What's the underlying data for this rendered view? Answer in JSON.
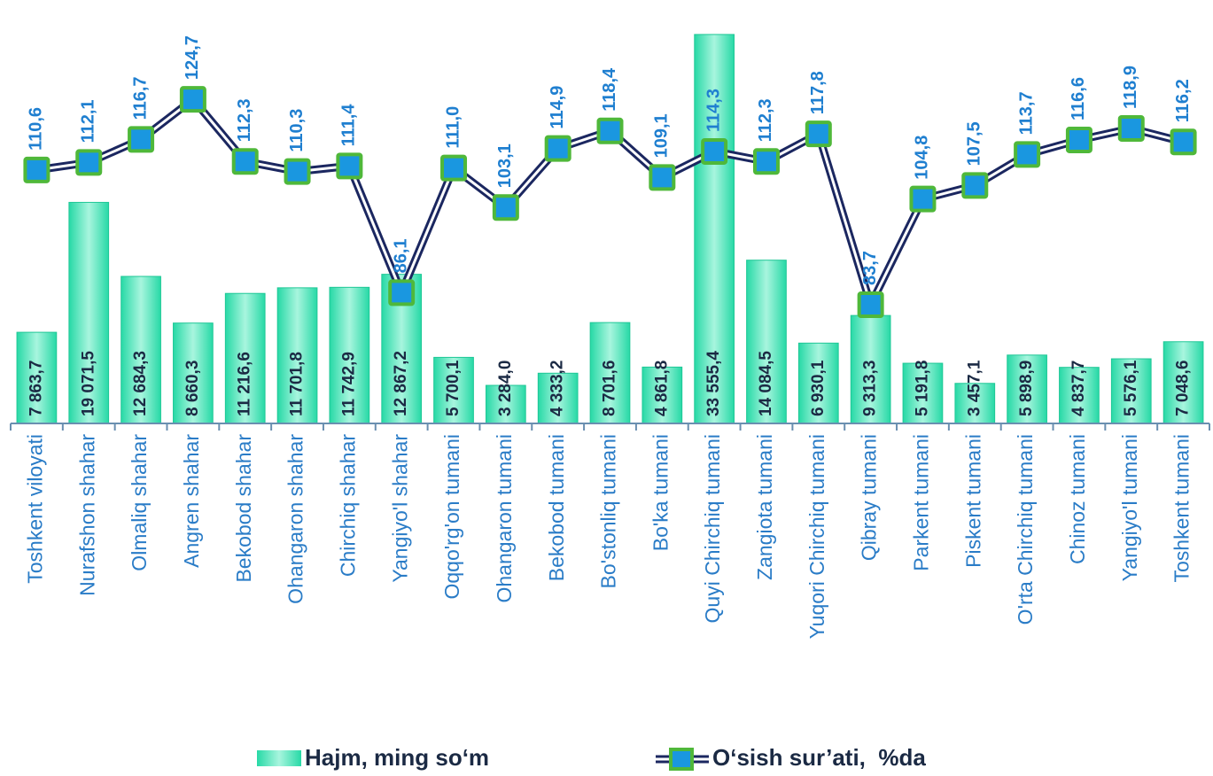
{
  "chart_data": {
    "type": "bar-line",
    "categories": [
      "Toshkent viloyati",
      "Nurafshon shahar",
      "Olmaliq shahar",
      "Angren shahar",
      "Bekobod shahar",
      "Ohangaron shahar",
      "Chirchiq shahar",
      "Yangiyo'l shahar",
      "Oqqo'rg'on tumani",
      "Ohangaron tumani",
      "Bekobod tumani",
      "Bo'stonliq tumani",
      "Bo'ka tumani",
      "Quyi Chirchiq tumani",
      "Zangiota tumani",
      "Yuqori Chirchiq tumani",
      "Qibray tumani",
      "Parkent tumani",
      "Piskent tumani",
      "O'rta Chirchiq tumani",
      "Chinoz tumani",
      "Yangiyo'l tumani",
      "Toshkent tumani"
    ],
    "series": [
      {
        "name": "Hajm, ming so‘m",
        "color": "#2fe3b4",
        "axis": "y",
        "values": [
          7863.7,
          19071.5,
          12684.3,
          8660.3,
          11216.6,
          11701.8,
          11742.9,
          12867.2,
          5700.1,
          3284.0,
          4333.2,
          8701.6,
          4861.8,
          33555.4,
          14084.5,
          6930.1,
          9313.3,
          5191.8,
          3457.1,
          5898.9,
          4837.7,
          5576.1,
          7048.6
        ],
        "value_labels": [
          "7 863,7",
          "19 071,5",
          "12 684,3",
          "8 660,3",
          "11 216,6",
          "11 701,8",
          "11 742,9",
          "12 867,2",
          "5 700,1",
          "3 284,0",
          "4 333,2",
          "8 701,6",
          "4 861,8",
          "33 555,4",
          "14 084,5",
          "6 930,1",
          "9 313,3",
          "5 191,8",
          "3 457,1",
          "5 898,9",
          "4 837,7",
          "5 576,1",
          "7 048,6"
        ]
      },
      {
        "name": "O‘sish sur’ati,  %da",
        "color": "#1a97e0",
        "axis": "y2",
        "values": [
          110.6,
          112.1,
          116.7,
          124.7,
          112.3,
          110.3,
          111.4,
          86.1,
          111.0,
          103.1,
          114.9,
          118.4,
          109.1,
          114.3,
          112.3,
          117.8,
          83.7,
          104.8,
          107.5,
          113.7,
          116.6,
          118.9,
          116.2
        ],
        "value_labels": [
          "110,6",
          "112,1",
          "116,7",
          "124,7",
          "112,3",
          "110,3",
          "111,4",
          "86,1",
          "111,0",
          "103,1",
          "114,9",
          "118,4",
          "109,1",
          "114,3",
          "112,3",
          "117,8",
          "83,7",
          "104,8",
          "107,5",
          "113,7",
          "116,6",
          "118,9",
          "116,2"
        ]
      }
    ],
    "ylim": [
      0,
      35000
    ],
    "y2lim": [
      60,
      141
    ],
    "legend": "bottom"
  }
}
